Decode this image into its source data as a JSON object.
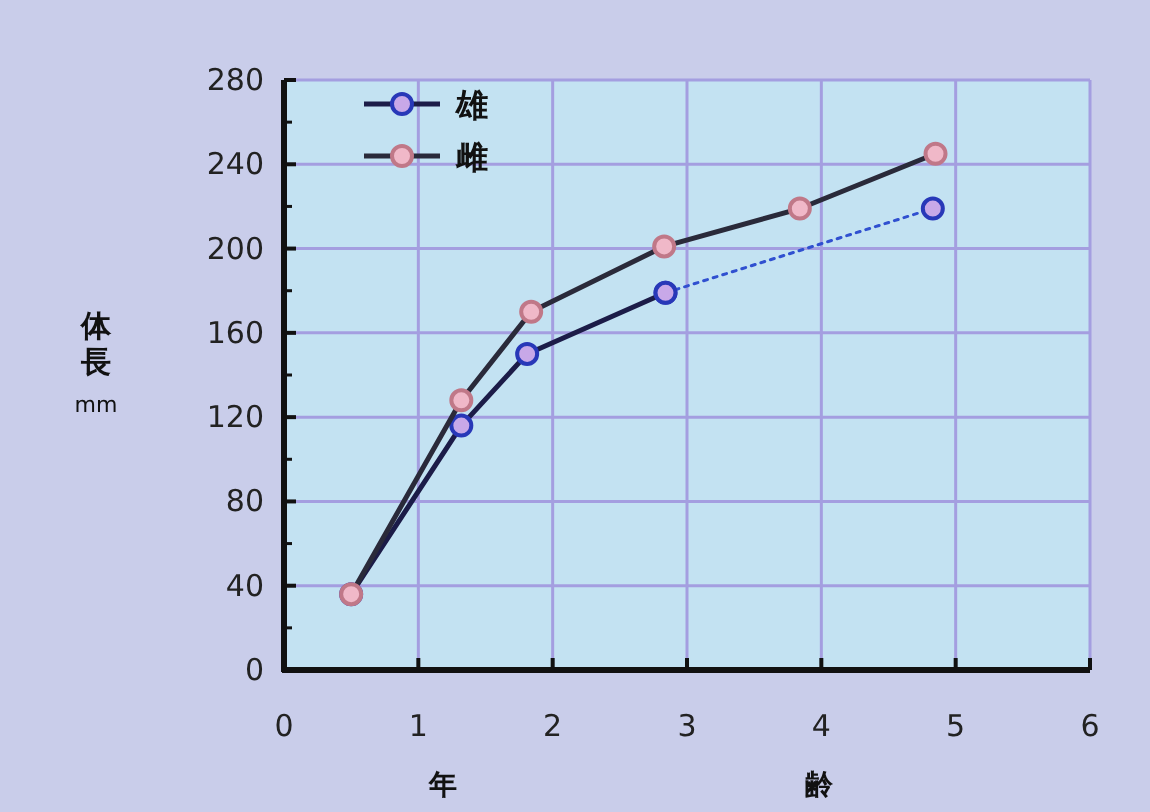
{
  "chart_data": {
    "type": "line",
    "xlabel": "年　齢",
    "ylabel": "体長 mm",
    "xlim": [
      0,
      6
    ],
    "xticks": [
      0,
      1,
      2,
      3,
      4,
      5,
      6
    ],
    "ylim": [
      0,
      280
    ],
    "yticks": [
      0,
      40,
      80,
      120,
      160,
      200,
      240,
      280
    ],
    "grid": true,
    "legend": "top left",
    "marker": "circle",
    "series": [
      {
        "name": "雄",
        "color": "#1c1c48",
        "line_style": "solid",
        "x": [
          0.5,
          1.32,
          1.81,
          2.84
        ],
        "values": [
          36,
          116,
          150,
          179
        ]
      },
      {
        "name": "雌",
        "color": "#2a2a3a",
        "line_style": "solid",
        "x": [
          0.5,
          1.32,
          1.84,
          2.83,
          3.84,
          4.85
        ],
        "values": [
          36,
          128,
          170,
          201,
          219,
          245
        ]
      },
      {
        "color": "#3050d0",
        "line_style": "dotted",
        "x": [
          2.84,
          4.83
        ],
        "values": [
          179,
          219
        ]
      }
    ]
  }
}
